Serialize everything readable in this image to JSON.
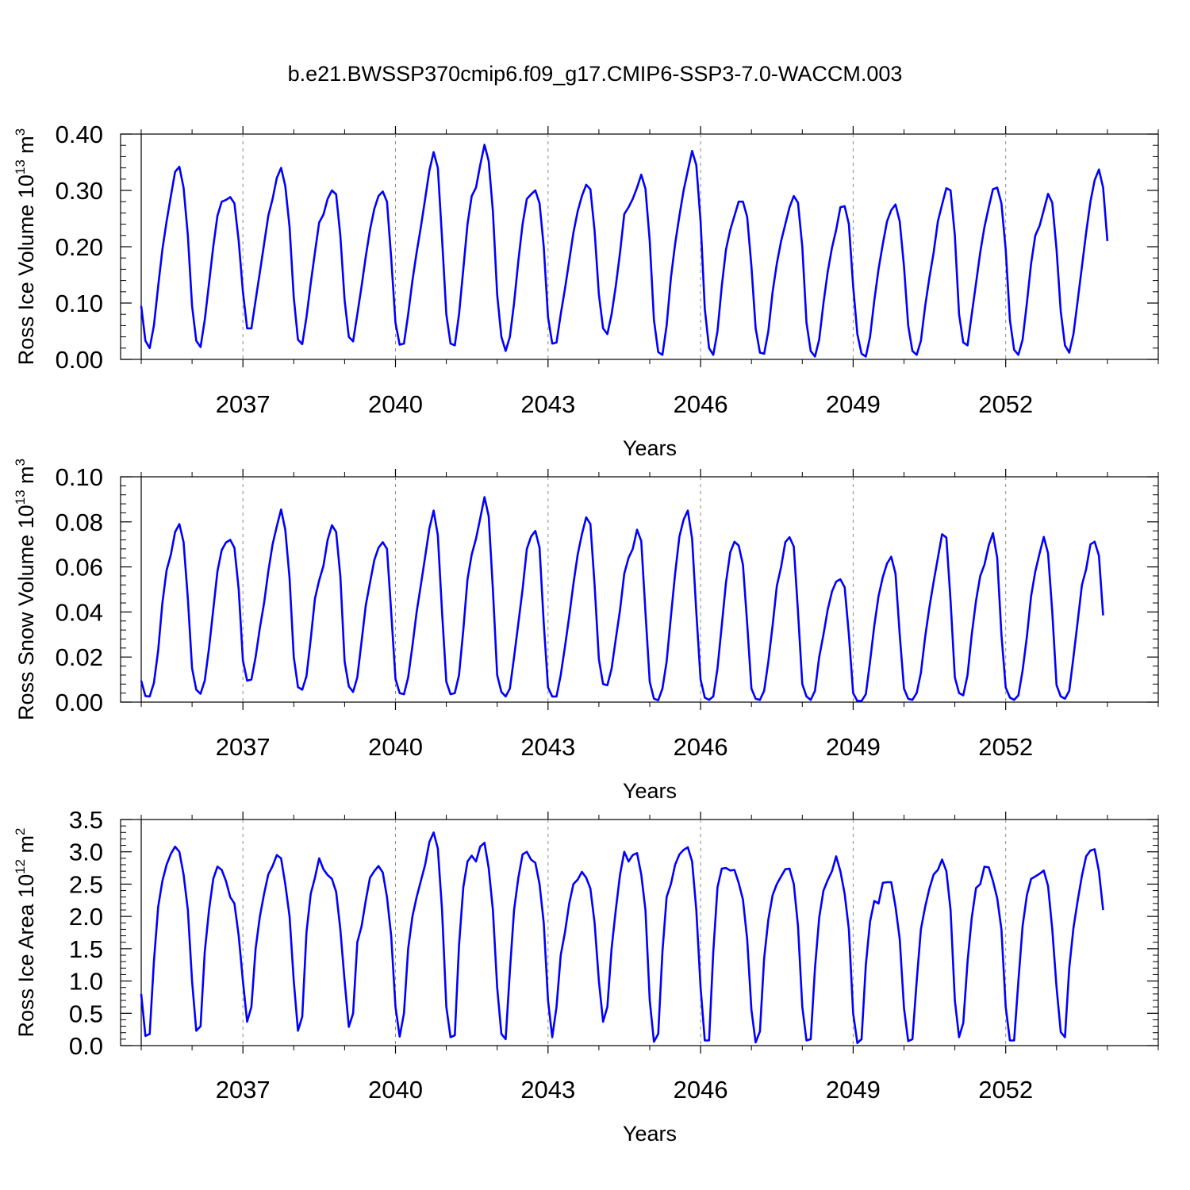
{
  "title": "b.e21.BWSSP370cmip6.f09_g17.CMIP6-SSP3-7.0-WACCM.003",
  "line_color": "#0000ff",
  "chart_data": [
    {
      "type": "line",
      "ylabel_main": "Ross Ice Volume 10",
      "ylabel_exp": "13",
      "ylabel_unit": " m",
      "ylabel_unit_exp": "3",
      "xlabel": "Years",
      "x_start": 2035.0,
      "x_step": 0.08333,
      "xlim": [
        2035.0,
        2055.0
      ],
      "ylim": [
        0,
        0.4
      ],
      "y_ticks": [
        "0.00",
        "0.10",
        "0.20",
        "0.30",
        "0.40"
      ],
      "y_tick_values": [
        0,
        0.1,
        0.2,
        0.3,
        0.4
      ],
      "x_ticks": [
        "2037",
        "2040",
        "2043",
        "2046",
        "2049",
        "2052"
      ],
      "x_tick_values": [
        2037,
        2040,
        2043,
        2046,
        2049,
        2052
      ],
      "values": [
        0.095,
        0.033,
        0.02,
        0.06,
        0.13,
        0.195,
        0.245,
        0.29,
        0.333,
        0.342,
        0.305,
        0.22,
        0.095,
        0.033,
        0.022,
        0.07,
        0.135,
        0.2,
        0.255,
        0.28,
        0.283,
        0.288,
        0.277,
        0.21,
        0.12,
        0.055,
        0.055,
        0.105,
        0.155,
        0.205,
        0.255,
        0.285,
        0.322,
        0.34,
        0.308,
        0.235,
        0.11,
        0.035,
        0.027,
        0.075,
        0.135,
        0.19,
        0.243,
        0.257,
        0.285,
        0.3,
        0.293,
        0.22,
        0.105,
        0.04,
        0.032,
        0.08,
        0.13,
        0.183,
        0.23,
        0.267,
        0.29,
        0.298,
        0.28,
        0.18,
        0.065,
        0.026,
        0.028,
        0.08,
        0.14,
        0.19,
        0.235,
        0.285,
        0.335,
        0.368,
        0.34,
        0.215,
        0.08,
        0.028,
        0.025,
        0.08,
        0.16,
        0.24,
        0.29,
        0.305,
        0.345,
        0.381,
        0.352,
        0.263,
        0.115,
        0.04,
        0.015,
        0.04,
        0.1,
        0.175,
        0.24,
        0.285,
        0.293,
        0.3,
        0.277,
        0.2,
        0.075,
        0.028,
        0.03,
        0.08,
        0.125,
        0.175,
        0.225,
        0.263,
        0.29,
        0.31,
        0.302,
        0.228,
        0.115,
        0.055,
        0.045,
        0.08,
        0.13,
        0.19,
        0.258,
        0.27,
        0.285,
        0.305,
        0.328,
        0.303,
        0.21,
        0.07,
        0.013,
        0.008,
        0.06,
        0.145,
        0.205,
        0.255,
        0.3,
        0.335,
        0.37,
        0.345,
        0.245,
        0.09,
        0.02,
        0.008,
        0.05,
        0.13,
        0.195,
        0.23,
        0.255,
        0.28,
        0.28,
        0.253,
        0.165,
        0.055,
        0.012,
        0.01,
        0.05,
        0.12,
        0.17,
        0.21,
        0.24,
        0.27,
        0.29,
        0.278,
        0.2,
        0.065,
        0.015,
        0.005,
        0.035,
        0.1,
        0.155,
        0.198,
        0.23,
        0.27,
        0.272,
        0.24,
        0.13,
        0.045,
        0.01,
        0.005,
        0.04,
        0.105,
        0.16,
        0.205,
        0.245,
        0.265,
        0.275,
        0.245,
        0.165,
        0.06,
        0.015,
        0.008,
        0.033,
        0.095,
        0.145,
        0.19,
        0.245,
        0.275,
        0.304,
        0.3,
        0.22,
        0.08,
        0.03,
        0.025,
        0.08,
        0.135,
        0.19,
        0.235,
        0.27,
        0.302,
        0.305,
        0.277,
        0.195,
        0.07,
        0.017,
        0.008,
        0.035,
        0.1,
        0.17,
        0.22,
        0.237,
        0.265,
        0.294,
        0.278,
        0.195,
        0.085,
        0.025,
        0.012,
        0.045,
        0.105,
        0.165,
        0.225,
        0.28,
        0.318,
        0.337,
        0.305,
        0.21
      ]
    },
    {
      "type": "line",
      "ylabel_main": "Ross Snow Volume 10",
      "ylabel_exp": "13",
      "ylabel_unit": " m",
      "ylabel_unit_exp": "3",
      "xlabel": "Years",
      "x_start": 2035.0,
      "x_step": 0.08333,
      "xlim": [
        2035.0,
        2055.0
      ],
      "ylim": [
        0,
        0.1
      ],
      "y_ticks": [
        "0.00",
        "0.02",
        "0.04",
        "0.06",
        "0.08",
        "0.10"
      ],
      "y_tick_values": [
        0,
        0.02,
        0.04,
        0.06,
        0.08,
        0.1
      ],
      "x_ticks": [
        "2037",
        "2040",
        "2043",
        "2046",
        "2049",
        "2052"
      ],
      "x_tick_values": [
        2037,
        2040,
        2043,
        2046,
        2049,
        2052
      ],
      "values": [
        0.0095,
        0.0027,
        0.0025,
        0.0085,
        0.023,
        0.044,
        0.0585,
        0.0655,
        0.0755,
        0.079,
        0.071,
        0.046,
        0.015,
        0.0055,
        0.0037,
        0.0095,
        0.024,
        0.041,
        0.058,
        0.0675,
        0.0708,
        0.072,
        0.0685,
        0.05,
        0.0185,
        0.0095,
        0.01,
        0.02,
        0.033,
        0.044,
        0.058,
        0.07,
        0.078,
        0.0855,
        0.0765,
        0.055,
        0.02,
        0.0067,
        0.0055,
        0.0115,
        0.028,
        0.046,
        0.054,
        0.0605,
        0.072,
        0.0785,
        0.0755,
        0.056,
        0.018,
        0.007,
        0.0045,
        0.011,
        0.027,
        0.043,
        0.053,
        0.063,
        0.0685,
        0.071,
        0.068,
        0.04,
        0.0103,
        0.004,
        0.0035,
        0.011,
        0.025,
        0.04,
        0.052,
        0.0645,
        0.077,
        0.085,
        0.074,
        0.04,
        0.009,
        0.0035,
        0.004,
        0.012,
        0.032,
        0.0545,
        0.0655,
        0.0725,
        0.0815,
        0.091,
        0.0825,
        0.05,
        0.012,
        0.0045,
        0.0025,
        0.006,
        0.02,
        0.035,
        0.05,
        0.068,
        0.0735,
        0.076,
        0.0685,
        0.035,
        0.0065,
        0.0025,
        0.0025,
        0.012,
        0.0245,
        0.038,
        0.0525,
        0.0655,
        0.0745,
        0.082,
        0.079,
        0.052,
        0.019,
        0.008,
        0.0075,
        0.0148,
        0.028,
        0.041,
        0.057,
        0.064,
        0.068,
        0.0765,
        0.0715,
        0.04,
        0.009,
        0.0015,
        0.0008,
        0.006,
        0.018,
        0.038,
        0.057,
        0.0735,
        0.081,
        0.085,
        0.0725,
        0.04,
        0.01,
        0.002,
        0.001,
        0.0025,
        0.015,
        0.034,
        0.053,
        0.0665,
        0.0712,
        0.0695,
        0.061,
        0.035,
        0.006,
        0.0015,
        0.001,
        0.005,
        0.018,
        0.034,
        0.0515,
        0.06,
        0.071,
        0.0732,
        0.069,
        0.04,
        0.008,
        0.0025,
        0.001,
        0.005,
        0.02,
        0.03,
        0.041,
        0.049,
        0.0535,
        0.0545,
        0.051,
        0.03,
        0.004,
        0.0005,
        0.0005,
        0.0035,
        0.018,
        0.034,
        0.047,
        0.0555,
        0.0615,
        0.0645,
        0.057,
        0.03,
        0.006,
        0.0015,
        0.001,
        0.004,
        0.013,
        0.029,
        0.042,
        0.0535,
        0.064,
        0.0745,
        0.073,
        0.045,
        0.011,
        0.004,
        0.003,
        0.012,
        0.03,
        0.045,
        0.056,
        0.061,
        0.0695,
        0.075,
        0.064,
        0.03,
        0.0065,
        0.002,
        0.001,
        0.003,
        0.014,
        0.029,
        0.047,
        0.058,
        0.066,
        0.0733,
        0.066,
        0.04,
        0.0075,
        0.0025,
        0.0015,
        0.005,
        0.02,
        0.036,
        0.052,
        0.059,
        0.07,
        0.0712,
        0.065,
        0.0385
      ]
    },
    {
      "type": "line",
      "ylabel_main": "Ross Ice Area 10",
      "ylabel_exp": "12",
      "ylabel_unit": " m",
      "ylabel_unit_exp": "2",
      "xlabel": "Years",
      "x_start": 2035.0,
      "x_step": 0.08333,
      "xlim": [
        2035.0,
        2055.0
      ],
      "ylim": [
        0,
        3.5
      ],
      "y_ticks": [
        "0.0",
        "0.5",
        "1.0",
        "1.5",
        "2.0",
        "2.5",
        "3.0",
        "3.5"
      ],
      "y_tick_values": [
        0,
        0.5,
        1,
        1.5,
        2,
        2.5,
        3,
        3.5
      ],
      "x_ticks": [
        "2037",
        "2040",
        "2043",
        "2046",
        "2049",
        "2052"
      ],
      "x_tick_values": [
        2037,
        2040,
        2043,
        2046,
        2049,
        2052
      ],
      "values": [
        0.8,
        0.15,
        0.18,
        1.3,
        2.15,
        2.55,
        2.8,
        2.97,
        3.08,
        3.0,
        2.65,
        2.1,
        1.0,
        0.23,
        0.3,
        1.45,
        2.1,
        2.58,
        2.77,
        2.72,
        2.55,
        2.3,
        2.2,
        1.7,
        1.0,
        0.37,
        0.6,
        1.5,
        2.0,
        2.35,
        2.65,
        2.78,
        2.95,
        2.9,
        2.5,
        2.0,
        1.0,
        0.23,
        0.45,
        1.75,
        2.35,
        2.6,
        2.9,
        2.73,
        2.64,
        2.58,
        2.38,
        1.8,
        1.0,
        0.29,
        0.5,
        1.6,
        1.85,
        2.25,
        2.6,
        2.7,
        2.78,
        2.68,
        2.3,
        1.7,
        0.6,
        0.14,
        0.5,
        1.5,
        2.0,
        2.3,
        2.55,
        2.8,
        3.15,
        3.3,
        3.05,
        2.1,
        0.6,
        0.13,
        0.16,
        1.55,
        2.45,
        2.85,
        2.94,
        2.85,
        3.08,
        3.14,
        2.75,
        2.1,
        0.9,
        0.18,
        0.1,
        1.15,
        2.1,
        2.6,
        2.96,
        3.0,
        2.88,
        2.83,
        2.5,
        1.9,
        0.7,
        0.13,
        0.6,
        1.4,
        1.75,
        2.2,
        2.5,
        2.57,
        2.69,
        2.6,
        2.43,
        1.9,
        1.0,
        0.37,
        0.6,
        1.5,
        2.1,
        2.65,
        3.0,
        2.85,
        2.95,
        2.98,
        2.65,
        2.1,
        0.7,
        0.06,
        0.18,
        1.45,
        2.3,
        2.5,
        2.8,
        2.96,
        3.03,
        3.07,
        2.85,
        2.1,
        0.9,
        0.08,
        0.08,
        1.45,
        2.45,
        2.74,
        2.75,
        2.71,
        2.72,
        2.52,
        2.26,
        1.65,
        0.55,
        0.05,
        0.22,
        1.35,
        1.95,
        2.33,
        2.5,
        2.62,
        2.73,
        2.74,
        2.5,
        1.85,
        0.6,
        0.08,
        0.1,
        1.2,
        1.98,
        2.4,
        2.56,
        2.7,
        2.93,
        2.7,
        2.35,
        1.8,
        0.5,
        0.04,
        0.1,
        1.25,
        1.92,
        2.24,
        2.2,
        2.52,
        2.53,
        2.53,
        2.15,
        1.65,
        0.58,
        0.07,
        0.1,
        1.0,
        1.8,
        2.15,
        2.43,
        2.65,
        2.72,
        2.88,
        2.7,
        2.1,
        0.7,
        0.13,
        0.35,
        1.3,
        1.98,
        2.44,
        2.5,
        2.77,
        2.76,
        2.55,
        2.28,
        1.8,
        0.6,
        0.08,
        0.08,
        1.0,
        1.85,
        2.33,
        2.58,
        2.62,
        2.66,
        2.71,
        2.47,
        1.8,
        0.9,
        0.21,
        0.13,
        1.2,
        1.82,
        2.25,
        2.63,
        2.93,
        3.02,
        3.04,
        2.7,
        2.1
      ]
    }
  ]
}
